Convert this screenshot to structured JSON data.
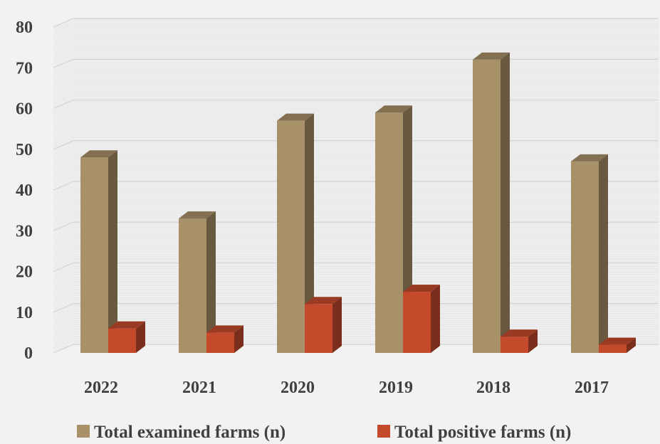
{
  "chart_data": {
    "type": "bar",
    "categories": [
      "2022",
      "2021",
      "2020",
      "2019",
      "2018",
      "2017"
    ],
    "series": [
      {
        "name": "Total examined farms (n)",
        "values": [
          48,
          33,
          57,
          59,
          72,
          47
        ],
        "color": "#a89068"
      },
      {
        "name": "Total positive farms (n)",
        "values": [
          6,
          5,
          12,
          15,
          4,
          2
        ],
        "color": "#c44a2b"
      }
    ],
    "ylim": [
      0,
      80
    ],
    "yticks": [
      0,
      10,
      20,
      30,
      40,
      50,
      60,
      70,
      80
    ],
    "grid": true,
    "legend_position": "bottom",
    "style": "3d-clustered-column"
  }
}
